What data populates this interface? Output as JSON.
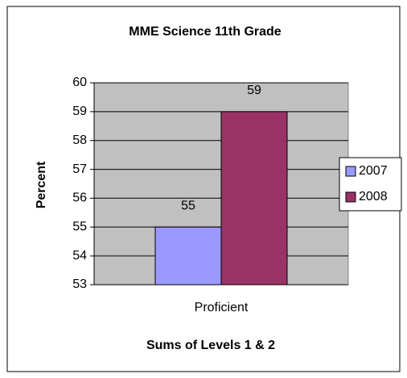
{
  "chart_data": {
    "type": "bar",
    "title": "MME Science 11th Grade",
    "xlabel": "Sums of Levels 1 & 2",
    "ylabel": "Percent",
    "categories": [
      "Proficient"
    ],
    "series": [
      {
        "name": "2007",
        "color": "#9999ff",
        "values": [
          55
        ]
      },
      {
        "name": "2008",
        "color": "#993366",
        "values": [
          59
        ]
      }
    ],
    "ylim": [
      53,
      60
    ],
    "yticks": [
      53,
      54,
      55,
      56,
      57,
      58,
      59,
      60
    ],
    "grid": true,
    "legend": "right"
  }
}
